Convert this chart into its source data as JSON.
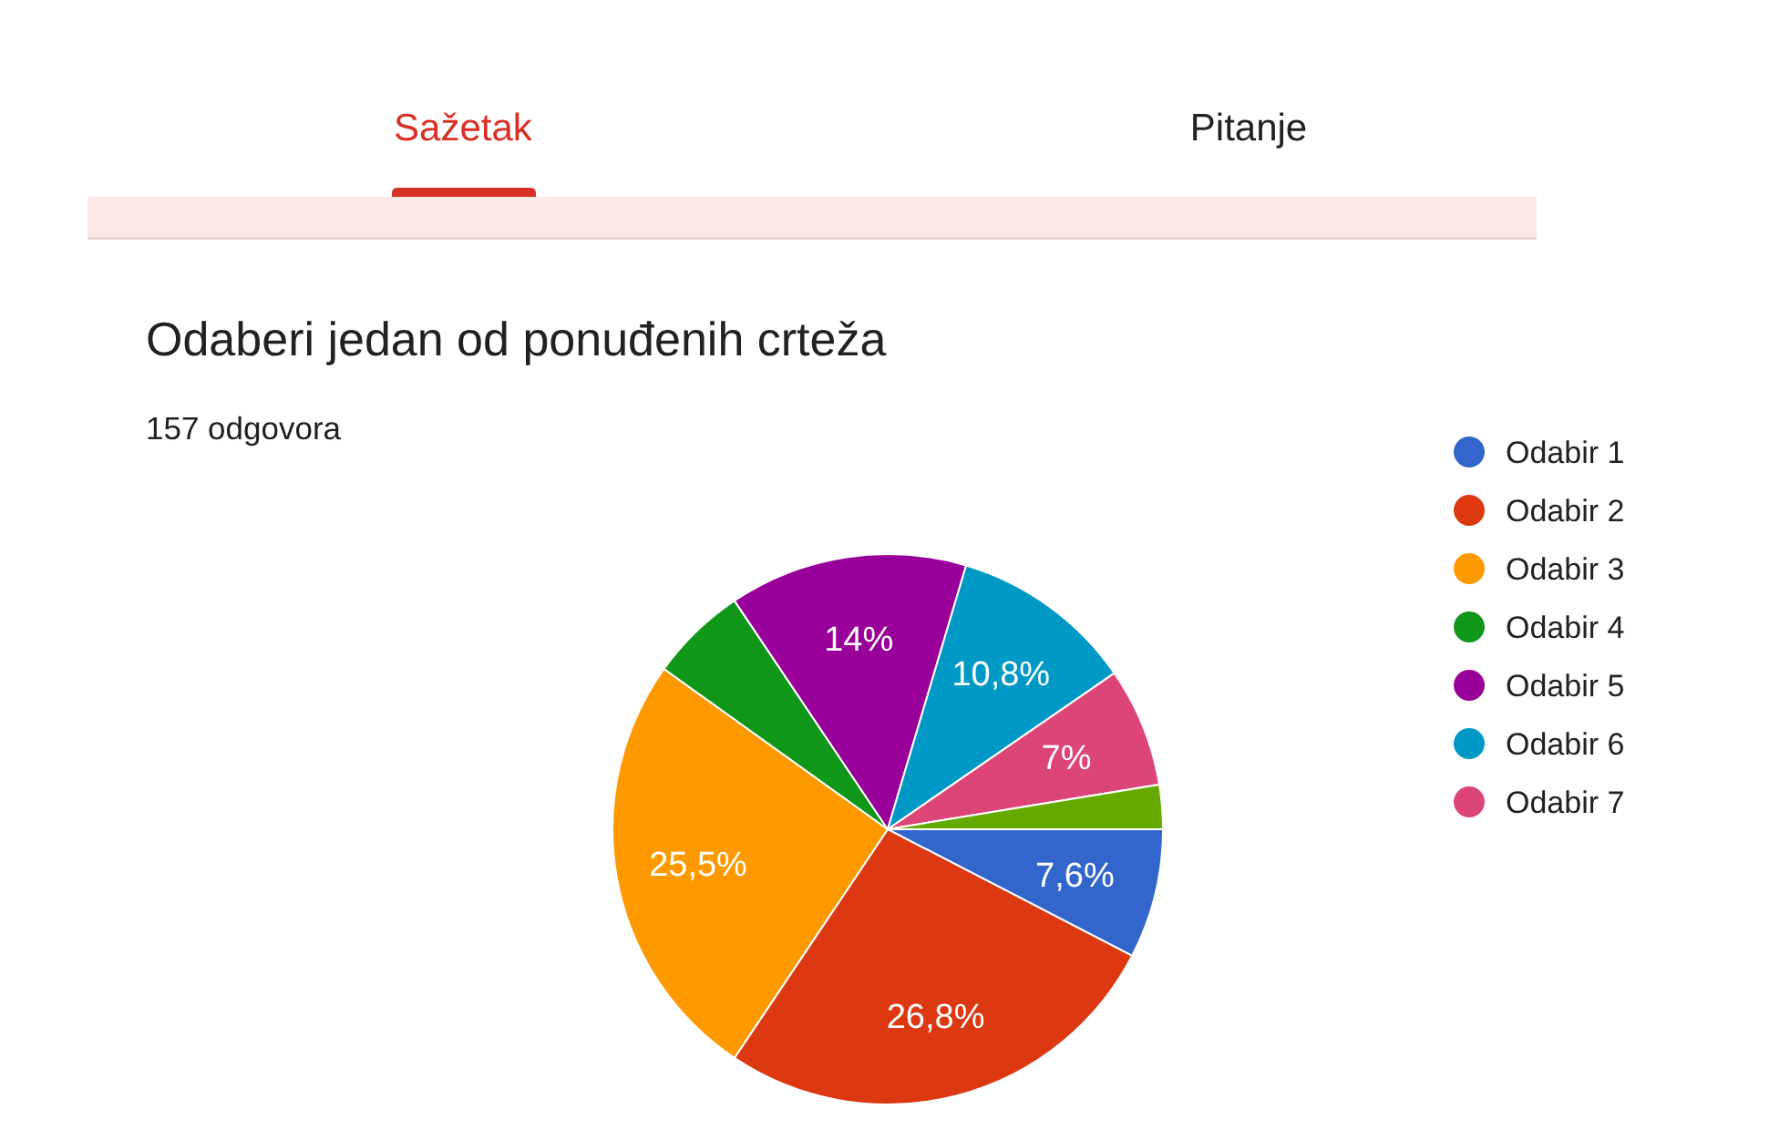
{
  "chart_data": {
    "type": "pie",
    "title": "Odaberi jedan od ponuđenih crteža",
    "subtitle": "157 odgovora",
    "categories": [
      "Odabir 1",
      "Odabir 2",
      "Odabir 3",
      "Odabir 4",
      "Odabir 5",
      "Odabir 6",
      "Odabir 7",
      null
    ],
    "values": [
      7.6,
      26.8,
      25.5,
      5.7,
      14,
      10.8,
      7,
      2.6
    ],
    "colors": [
      "#3366cc",
      "#dc3912",
      "#ff9900",
      "#109618",
      "#990099",
      "#0099c6",
      "#dd4477",
      "#66aa00"
    ],
    "value_labels": [
      "7,6%",
      "26,8%",
      "25,5%",
      null,
      "14%",
      "10,8%",
      "7%",
      null
    ],
    "legend": "right",
    "annotations": [
      "Sažetak",
      "Pitanje"
    ]
  }
}
